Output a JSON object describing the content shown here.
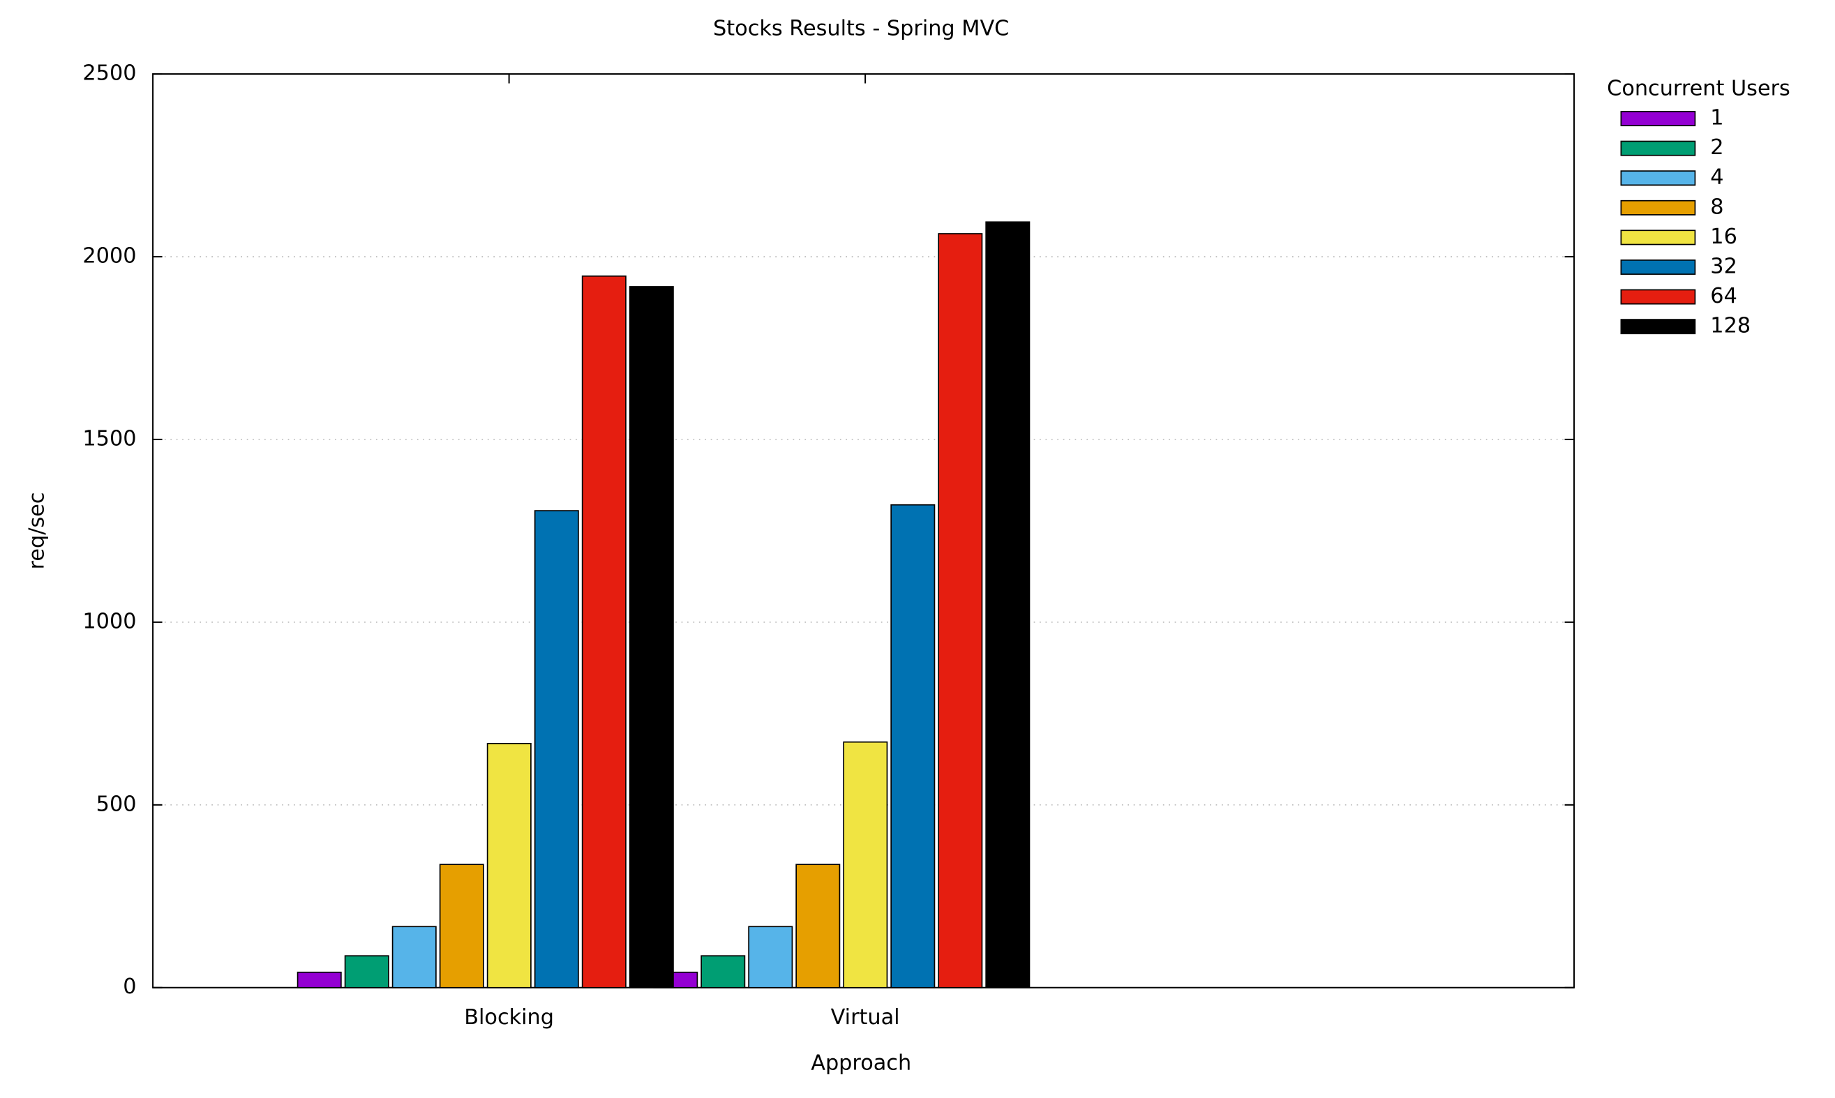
{
  "chart_data": {
    "type": "bar",
    "title": "Stocks Results - Spring MVC",
    "x_label": "Approach",
    "y_label": "req/sec",
    "categories": [
      "Blocking",
      "Virtual"
    ],
    "legend_title": "Concurrent Users",
    "legend_position": "outside-right",
    "ylim": [
      0,
      2500
    ],
    "yticks": [
      0,
      500,
      1000,
      1500,
      2000,
      2500
    ],
    "grid": true,
    "series": [
      {
        "name": "1",
        "color": "#9400d3",
        "values": [
          42,
          42
        ]
      },
      {
        "name": "2",
        "color": "#009e73",
        "values": [
          87,
          87
        ]
      },
      {
        "name": "4",
        "color": "#56b4e9",
        "values": [
          167,
          167
        ]
      },
      {
        "name": "8",
        "color": "#e69f00",
        "values": [
          337,
          337
        ]
      },
      {
        "name": "16",
        "color": "#f0e442",
        "values": [
          668,
          672
        ]
      },
      {
        "name": "32",
        "color": "#0072b2",
        "values": [
          1305,
          1321
        ]
      },
      {
        "name": "64",
        "color": "#e51e10",
        "values": [
          1947,
          2063
        ]
      },
      {
        "name": "128",
        "color": "#000000",
        "values": [
          1918,
          2095
        ]
      }
    ]
  }
}
